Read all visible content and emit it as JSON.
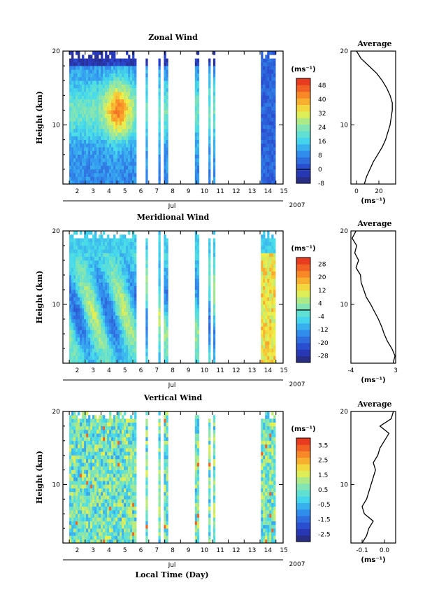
{
  "chart_data": [
    {
      "type": "heatmap",
      "title": "Zonal Wind",
      "ylabel": "Height (km)",
      "y_ticks": [
        "20",
        "10"
      ],
      "y_range_km": [
        2,
        20
      ],
      "x_ticks": [
        "2",
        "3",
        "4",
        "5",
        "6",
        "7",
        "8",
        "9",
        "10",
        "11",
        "12",
        "13",
        "14",
        "15"
      ],
      "x_month_label": "Jul",
      "year_label": "2007",
      "colorbar": {
        "unit": "(ms⁻¹)",
        "labels": [
          "48",
          "40",
          "32",
          "24",
          "16",
          "8",
          "0",
          "-8"
        ],
        "range": [
          -8,
          52
        ],
        "zero_line": 0
      },
      "data_days": [
        [
          2,
          6.1
        ],
        [
          6.8,
          6.85
        ],
        [
          7.6,
          7.65
        ],
        [
          7.95,
          8.1
        ],
        [
          9.9,
          10.1
        ],
        [
          10.75,
          10.85
        ],
        [
          11.05,
          11.15
        ],
        [
          14.05,
          14.9
        ]
      ],
      "average_profile": {
        "title": "Average",
        "xlabel": "(ms⁻¹)",
        "x_ticks": [
          "0",
          "20"
        ],
        "xlim": [
          -5,
          35
        ],
        "height_km": [
          2,
          3,
          4,
          5,
          6,
          7,
          8,
          9,
          10,
          11,
          12,
          13,
          14,
          15,
          16,
          17,
          18,
          19,
          20
        ],
        "values": [
          7,
          9,
          12,
          15,
          19,
          23,
          26,
          28,
          30,
          31,
          32,
          32,
          30,
          27,
          23,
          18,
          11,
          4,
          0
        ]
      }
    },
    {
      "type": "heatmap",
      "title": "Meridional Wind",
      "ylabel": "Height (km)",
      "y_ticks": [
        "20",
        "10"
      ],
      "y_range_km": [
        2,
        20
      ],
      "x_ticks": [
        "2",
        "3",
        "4",
        "5",
        "6",
        "7",
        "8",
        "9",
        "10",
        "11",
        "12",
        "13",
        "14",
        "15"
      ],
      "x_month_label": "Jul",
      "year_label": "2007",
      "colorbar": {
        "unit": "(ms⁻¹)",
        "labels": [
          "28",
          "20",
          "12",
          "4",
          "-4",
          "-12",
          "-20",
          "-28"
        ],
        "range": [
          -32,
          32
        ],
        "zero_line": 0
      },
      "data_days": [
        [
          2,
          6.1
        ],
        [
          6.8,
          6.85
        ],
        [
          7.6,
          7.65
        ],
        [
          7.95,
          8.1
        ],
        [
          9.9,
          10.1
        ],
        [
          10.75,
          10.85
        ],
        [
          11.05,
          11.15
        ],
        [
          14.05,
          14.9
        ]
      ],
      "average_profile": {
        "title": "Average",
        "xlabel": "(ms⁻¹)",
        "x_ticks": [
          "-4",
          "3"
        ],
        "xlim": [
          -4,
          3
        ],
        "height_km": [
          2,
          3,
          4,
          5,
          6,
          7,
          8,
          9,
          10,
          11,
          12,
          13,
          14,
          15,
          16,
          17,
          18,
          19,
          20
        ],
        "values": [
          2.6,
          2.9,
          2.4,
          1.7,
          1.2,
          0.8,
          0.3,
          -0.3,
          -0.9,
          -1.6,
          -2.0,
          -2.4,
          -2.5,
          -3.2,
          -2.8,
          -3.4,
          -3.1,
          -3.8,
          -3.2
        ]
      }
    },
    {
      "type": "heatmap",
      "title": "Vertical Wind",
      "ylabel": "Height (km)",
      "xlabel": "Local Time (Day)",
      "y_ticks": [
        "20",
        "10"
      ],
      "y_range_km": [
        2,
        20
      ],
      "x_ticks": [
        "2",
        "3",
        "4",
        "5",
        "6",
        "7",
        "8",
        "9",
        "10",
        "11",
        "12",
        "13",
        "14",
        "15"
      ],
      "x_month_label": "Jul",
      "year_label": "2007",
      "colorbar": {
        "unit": "(ms⁻¹)",
        "labels": [
          "3.5",
          "2.5",
          "1.5",
          "0.5",
          "-0.5",
          "-1.5",
          "-2.5"
        ],
        "range": [
          -3,
          4
        ]
      },
      "data_days": [
        [
          2,
          6.1
        ],
        [
          6.8,
          6.85
        ],
        [
          7.6,
          7.65
        ],
        [
          7.95,
          8.1
        ],
        [
          9.9,
          10.1
        ],
        [
          10.75,
          10.85
        ],
        [
          11.05,
          11.15
        ],
        [
          14.05,
          14.9
        ]
      ],
      "average_profile": {
        "title": "Average",
        "xlabel": "(ms⁻¹)",
        "x_ticks": [
          "-0.1",
          "0.0"
        ],
        "xlim": [
          -0.15,
          0.05
        ],
        "height_km": [
          2,
          3,
          4,
          5,
          6,
          7,
          8,
          9,
          10,
          11,
          12,
          13,
          14,
          15,
          16,
          17,
          18,
          19,
          20
        ],
        "values": [
          -0.1,
          -0.08,
          -0.07,
          -0.05,
          -0.09,
          -0.1,
          -0.08,
          -0.07,
          -0.06,
          -0.05,
          -0.04,
          -0.05,
          -0.03,
          -0.02,
          0.0,
          0.02,
          -0.02,
          0.03,
          0.04
        ]
      }
    }
  ]
}
